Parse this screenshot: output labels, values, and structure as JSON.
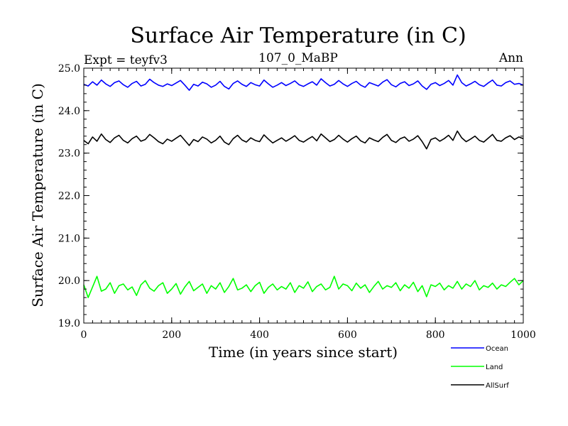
{
  "chart_data": {
    "type": "line",
    "title": "Surface Air Temperature (in C)",
    "expt_label": "Expt = teyfv3",
    "subtitle": "107_0_MaBP",
    "period_label": "Ann",
    "xlabel": "Time (in years since start)",
    "ylabel": "Surface Air Temperature (in C)",
    "xlim": [
      0,
      1000
    ],
    "ylim": [
      19.0,
      25.0
    ],
    "xticks": [
      0,
      200,
      400,
      600,
      800,
      1000
    ],
    "xtick_labels": [
      "0",
      "200",
      "400",
      "600",
      "800",
      "1000"
    ],
    "yticks": [
      19.0,
      20.0,
      21.0,
      22.0,
      23.0,
      24.0,
      25.0
    ],
    "ytick_labels": [
      "19.0",
      "20.0",
      "21.0",
      "22.0",
      "23.0",
      "24.0",
      "25.0"
    ],
    "legend_position": "bottom-right",
    "series": [
      {
        "name": "Ocean",
        "color": "#0000ff",
        "x_start": 0,
        "x_step": 10,
        "values": [
          24.62,
          24.58,
          24.68,
          24.6,
          24.72,
          24.63,
          24.57,
          24.66,
          24.7,
          24.61,
          24.55,
          24.64,
          24.69,
          24.58,
          24.62,
          24.74,
          24.66,
          24.6,
          24.57,
          24.63,
          24.59,
          24.65,
          24.71,
          24.6,
          24.48,
          24.62,
          24.58,
          24.67,
          24.63,
          24.55,
          24.6,
          24.69,
          24.57,
          24.51,
          24.64,
          24.7,
          24.62,
          24.57,
          24.66,
          24.61,
          24.58,
          24.72,
          24.63,
          24.55,
          24.6,
          24.66,
          24.59,
          24.64,
          24.7,
          24.61,
          24.57,
          24.63,
          24.68,
          24.6,
          24.75,
          24.66,
          24.58,
          24.62,
          24.71,
          24.63,
          24.57,
          24.64,
          24.69,
          24.6,
          24.55,
          24.66,
          24.62,
          24.58,
          24.67,
          24.73,
          24.61,
          24.56,
          24.64,
          24.68,
          24.59,
          24.63,
          24.7,
          24.58,
          24.5,
          24.62,
          24.66,
          24.59,
          24.64,
          24.71,
          24.6,
          24.84,
          24.66,
          24.58,
          24.63,
          24.69,
          24.61,
          24.57,
          24.65,
          24.72,
          24.6,
          24.58,
          24.66,
          24.7,
          24.62,
          24.64,
          24.6
        ]
      },
      {
        "name": "Land",
        "color": "#00ff00",
        "x_start": 0,
        "x_step": 10,
        "values": [
          19.9,
          19.6,
          19.85,
          20.1,
          19.75,
          19.8,
          19.95,
          19.7,
          19.88,
          19.92,
          19.78,
          19.85,
          19.65,
          19.9,
          20.0,
          19.82,
          19.75,
          19.88,
          19.95,
          19.7,
          19.8,
          19.93,
          19.68,
          19.85,
          19.98,
          19.76,
          19.84,
          19.92,
          19.7,
          19.88,
          19.8,
          19.95,
          19.72,
          19.86,
          20.05,
          19.78,
          19.82,
          19.9,
          19.74,
          19.88,
          19.96,
          19.7,
          19.84,
          19.92,
          19.78,
          19.86,
          19.8,
          19.95,
          19.72,
          19.88,
          19.82,
          19.97,
          19.74,
          19.86,
          19.92,
          19.78,
          19.84,
          20.1,
          19.8,
          19.92,
          19.88,
          19.76,
          19.94,
          19.82,
          19.9,
          19.72,
          19.86,
          19.98,
          19.8,
          19.88,
          19.84,
          19.95,
          19.76,
          19.9,
          19.82,
          19.96,
          19.74,
          19.88,
          19.62,
          19.9,
          19.86,
          19.94,
          19.78,
          19.88,
          19.82,
          19.98,
          19.8,
          19.92,
          19.86,
          20.0,
          19.78,
          19.88,
          19.84,
          19.94,
          19.8,
          19.9,
          19.86,
          19.96,
          20.05,
          19.9,
          20.0
        ]
      },
      {
        "name": "AllSurf",
        "color": "#000000",
        "x_start": 0,
        "x_step": 10,
        "values": [
          23.3,
          23.22,
          23.38,
          23.28,
          23.45,
          23.32,
          23.25,
          23.36,
          23.42,
          23.3,
          23.24,
          23.34,
          23.4,
          23.28,
          23.32,
          23.44,
          23.36,
          23.27,
          23.22,
          23.33,
          23.28,
          23.35,
          23.42,
          23.3,
          23.18,
          23.32,
          23.27,
          23.38,
          23.33,
          23.24,
          23.3,
          23.4,
          23.26,
          23.2,
          23.34,
          23.42,
          23.31,
          23.26,
          23.36,
          23.3,
          23.27,
          23.43,
          23.33,
          23.24,
          23.3,
          23.36,
          23.28,
          23.34,
          23.41,
          23.3,
          23.26,
          23.33,
          23.39,
          23.29,
          23.45,
          23.36,
          23.27,
          23.32,
          23.42,
          23.33,
          23.26,
          23.34,
          23.4,
          23.29,
          23.24,
          23.36,
          23.31,
          23.27,
          23.37,
          23.44,
          23.3,
          23.25,
          23.34,
          23.38,
          23.28,
          23.33,
          23.41,
          23.27,
          23.1,
          23.32,
          23.36,
          23.28,
          23.34,
          23.42,
          23.3,
          23.52,
          23.36,
          23.27,
          23.33,
          23.4,
          23.3,
          23.26,
          23.35,
          23.44,
          23.3,
          23.28,
          23.36,
          23.41,
          23.32,
          23.38,
          23.34
        ]
      }
    ]
  }
}
